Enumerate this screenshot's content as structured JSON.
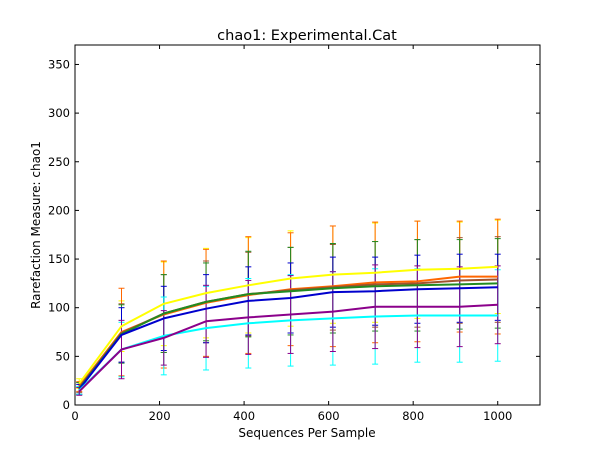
{
  "chart_data": {
    "type": "line",
    "title": "chao1: Experimental.Cat",
    "xlabel": "Sequences Per Sample",
    "ylabel": "Rarefaction Measure: chao1",
    "xlim": [
      0,
      1100
    ],
    "ylim": [
      0,
      370
    ],
    "xticks": [
      0,
      200,
      400,
      600,
      800,
      1000
    ],
    "yticks": [
      0,
      50,
      100,
      150,
      200,
      250,
      300,
      350
    ],
    "grid": false,
    "legend": "none",
    "x": [
      10,
      110,
      210,
      310,
      410,
      510,
      610,
      710,
      810,
      910,
      1000
    ],
    "series": [
      {
        "color": "#ffff00",
        "values": [
          22,
          81,
          104,
          115,
          123,
          130,
          134,
          136,
          139,
          140,
          142
        ],
        "err": [
          5,
          26,
          43,
          46,
          49,
          49,
          50,
          51,
          50,
          48,
          48
        ]
      },
      {
        "color": "#ff6600",
        "values": [
          19,
          75,
          93,
          105,
          113,
          119,
          122,
          126,
          127,
          132,
          132
        ],
        "err": [
          5,
          45,
          55,
          55,
          60,
          58,
          62,
          62,
          62,
          57,
          59
        ]
      },
      {
        "color": "#a0522d",
        "values": [
          18,
          74,
          94,
          106,
          114,
          118,
          121,
          124,
          125,
          128,
          129
        ],
        "err": [
          5,
          30,
          40,
          42,
          43,
          44,
          44,
          44,
          45,
          44,
          44
        ]
      },
      {
        "color": "#228b22",
        "values": [
          17,
          73,
          94,
          106,
          114,
          117,
          120,
          122,
          123,
          124,
          125
        ],
        "err": [
          6,
          30,
          40,
          40,
          44,
          45,
          46,
          46,
          47,
          46,
          46
        ]
      },
      {
        "color": "#0000cd",
        "values": [
          16,
          72,
          89,
          99,
          107,
          110,
          116,
          117,
          119,
          120,
          121
        ],
        "err": [
          5,
          28,
          33,
          35,
          35,
          36,
          36,
          35,
          35,
          35,
          34
        ]
      },
      {
        "color": "#00ffff",
        "values": [
          15,
          57,
          71,
          79,
          84,
          87,
          89,
          91,
          92,
          92,
          92
        ],
        "err": [
          4,
          28,
          40,
          43,
          46,
          47,
          48,
          49,
          48,
          48,
          47
        ]
      },
      {
        "color": "#8b008b",
        "values": [
          14,
          57,
          69,
          86,
          90,
          93,
          96,
          101,
          101,
          101,
          103
        ],
        "err": [
          4,
          30,
          28,
          37,
          38,
          40,
          41,
          43,
          42,
          41,
          40
        ]
      }
    ]
  }
}
